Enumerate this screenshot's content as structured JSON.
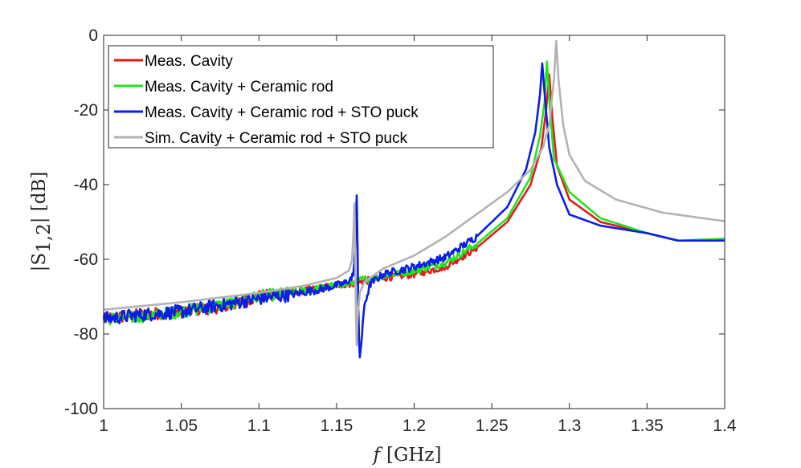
{
  "chart_data": {
    "type": "line",
    "title": "",
    "xlabel_symbol": "f",
    "xlabel_unit": "[GHz]",
    "ylabel": "|S",
    "ylabel_sub": "1,2",
    "ylabel_tail": "| [dB]",
    "xlim": [
      1,
      1.4
    ],
    "ylim": [
      -100,
      0
    ],
    "xticks": [
      1,
      1.05,
      1.1,
      1.15,
      1.2,
      1.25,
      1.3,
      1.35,
      1.4
    ],
    "xtick_labels": [
      "1",
      "1.05",
      "1.1",
      "1.15",
      "1.2",
      "1.25",
      "1.3",
      "1.35",
      "1.4"
    ],
    "yticks": [
      0,
      -20,
      -40,
      -60,
      -80,
      -100
    ],
    "ytick_labels": [
      "0",
      "-20",
      "-40",
      "-60",
      "-80",
      "-100"
    ],
    "grid": false,
    "legend_position": "top-left",
    "series": [
      {
        "name": "Meas. Cavity",
        "color": "#e41a1a",
        "noise": 1.2,
        "points": [
          [
            1.0,
            -76
          ],
          [
            1.02,
            -75
          ],
          [
            1.05,
            -74
          ],
          [
            1.08,
            -72.5
          ],
          [
            1.1,
            -70
          ],
          [
            1.12,
            -69
          ],
          [
            1.15,
            -67
          ],
          [
            1.16,
            -66.5
          ],
          [
            1.163,
            -66.2
          ],
          [
            1.166,
            -66
          ],
          [
            1.18,
            -65
          ],
          [
            1.2,
            -64
          ],
          [
            1.22,
            -62
          ],
          [
            1.24,
            -57
          ],
          [
            1.26,
            -50
          ],
          [
            1.275,
            -40
          ],
          [
            1.282,
            -30
          ],
          [
            1.285,
            -20
          ],
          [
            1.287,
            -10.5
          ],
          [
            1.289,
            -22
          ],
          [
            1.292,
            -35
          ],
          [
            1.3,
            -44
          ],
          [
            1.32,
            -50
          ],
          [
            1.35,
            -53
          ],
          [
            1.37,
            -55
          ],
          [
            1.4,
            -55
          ]
        ]
      },
      {
        "name": "Meas. Cavity + Ceramic rod",
        "color": "#22e41e",
        "noise": 1.2,
        "points": [
          [
            1.0,
            -76
          ],
          [
            1.02,
            -75.5
          ],
          [
            1.05,
            -74
          ],
          [
            1.08,
            -72
          ],
          [
            1.1,
            -70
          ],
          [
            1.12,
            -69
          ],
          [
            1.15,
            -67
          ],
          [
            1.16,
            -66.3
          ],
          [
            1.163,
            -66
          ],
          [
            1.166,
            -65.5
          ],
          [
            1.18,
            -64.5
          ],
          [
            1.2,
            -63
          ],
          [
            1.22,
            -61
          ],
          [
            1.24,
            -56
          ],
          [
            1.26,
            -49
          ],
          [
            1.275,
            -38
          ],
          [
            1.281,
            -27
          ],
          [
            1.284,
            -18
          ],
          [
            1.2855,
            -7
          ],
          [
            1.2875,
            -20
          ],
          [
            1.29,
            -33
          ],
          [
            1.3,
            -42
          ],
          [
            1.32,
            -49
          ],
          [
            1.35,
            -53
          ],
          [
            1.37,
            -55
          ],
          [
            1.4,
            -54.5
          ]
        ]
      },
      {
        "name": "Meas. Cavity + Ceramic rod + STO puck",
        "color": "#0a1ee6",
        "noise": 1.3,
        "points": [
          [
            1.0,
            -76
          ],
          [
            1.02,
            -75
          ],
          [
            1.05,
            -74
          ],
          [
            1.08,
            -72
          ],
          [
            1.1,
            -70.5
          ],
          [
            1.12,
            -69.5
          ],
          [
            1.14,
            -68
          ],
          [
            1.155,
            -66.5
          ],
          [
            1.16,
            -65
          ],
          [
            1.161,
            -63
          ],
          [
            1.162,
            -58
          ],
          [
            1.1625,
            -50
          ],
          [
            1.163,
            -42
          ],
          [
            1.1635,
            -55
          ],
          [
            1.164,
            -72
          ],
          [
            1.1645,
            -82
          ],
          [
            1.165,
            -86
          ],
          [
            1.1665,
            -80
          ],
          [
            1.168,
            -72
          ],
          [
            1.172,
            -66.5
          ],
          [
            1.18,
            -64
          ],
          [
            1.2,
            -62
          ],
          [
            1.22,
            -59.5
          ],
          [
            1.24,
            -54
          ],
          [
            1.26,
            -46
          ],
          [
            1.272,
            -36
          ],
          [
            1.278,
            -26
          ],
          [
            1.281,
            -16
          ],
          [
            1.2825,
            -7.5
          ],
          [
            1.2845,
            -18
          ],
          [
            1.287,
            -30
          ],
          [
            1.292,
            -40
          ],
          [
            1.3,
            -48
          ],
          [
            1.32,
            -51
          ],
          [
            1.35,
            -53
          ],
          [
            1.37,
            -55
          ],
          [
            1.4,
            -55
          ]
        ]
      },
      {
        "name": "Sim. Cavity + Ceramic rod + STO puck",
        "color": "#b3b3b3",
        "noise": 0,
        "points": [
          [
            1.0,
            -73.5
          ],
          [
            1.05,
            -71.5
          ],
          [
            1.1,
            -69
          ],
          [
            1.13,
            -67
          ],
          [
            1.15,
            -65
          ],
          [
            1.158,
            -63
          ],
          [
            1.16,
            -60
          ],
          [
            1.161,
            -52
          ],
          [
            1.1615,
            -45
          ],
          [
            1.162,
            -58
          ],
          [
            1.1625,
            -75
          ],
          [
            1.163,
            -83
          ],
          [
            1.1635,
            -76
          ],
          [
            1.165,
            -69
          ],
          [
            1.168,
            -66
          ],
          [
            1.18,
            -62.5
          ],
          [
            1.2,
            -59
          ],
          [
            1.22,
            -54
          ],
          [
            1.24,
            -48
          ],
          [
            1.26,
            -42
          ],
          [
            1.275,
            -36
          ],
          [
            1.283,
            -30
          ],
          [
            1.287,
            -24
          ],
          [
            1.29,
            -12
          ],
          [
            1.2915,
            -1.5
          ],
          [
            1.293,
            -12
          ],
          [
            1.296,
            -24
          ],
          [
            1.3,
            -32
          ],
          [
            1.31,
            -39
          ],
          [
            1.33,
            -44
          ],
          [
            1.36,
            -47.5
          ],
          [
            1.4,
            -49.8
          ]
        ]
      }
    ]
  }
}
